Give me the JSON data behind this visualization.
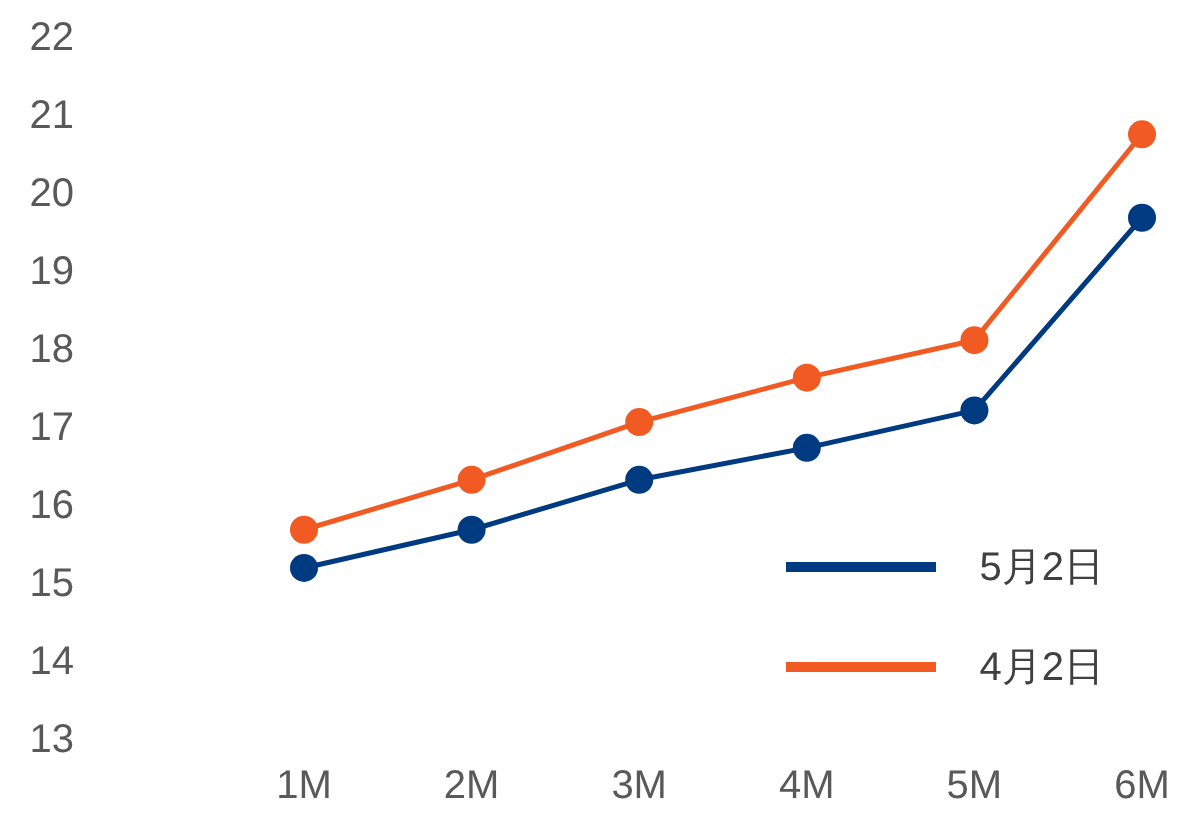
{
  "chart_data": {
    "type": "line",
    "categories": [
      "1M",
      "2M",
      "3M",
      "4M",
      "5M",
      "6M"
    ],
    "series": [
      {
        "name": "5月2日",
        "color": "#003a80",
        "values": [
          15.18,
          15.67,
          16.31,
          16.72,
          17.2,
          19.67
        ]
      },
      {
        "name": "4月2日",
        "color": "#f15a22",
        "values": [
          15.67,
          16.31,
          17.05,
          17.62,
          18.1,
          20.74
        ]
      }
    ],
    "ylim": [
      13,
      22
    ],
    "yticks": [
      13,
      14,
      15,
      16,
      17,
      18,
      19,
      20,
      21,
      22
    ],
    "grid": false,
    "legend": "bottom right",
    "marker": "circle"
  }
}
